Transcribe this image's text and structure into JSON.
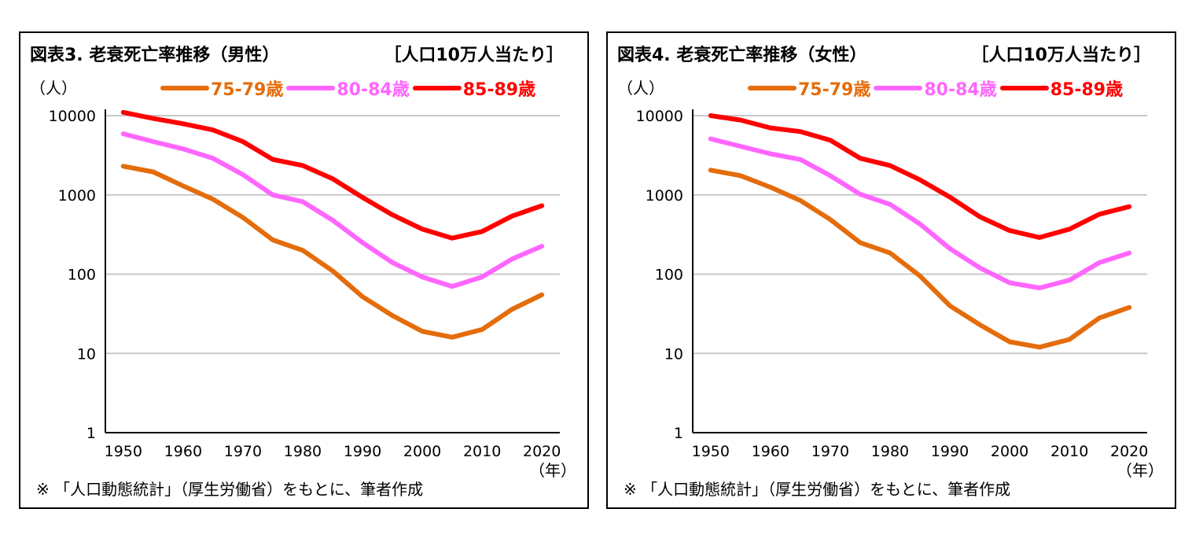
{
  "chart_data": [
    {
      "type": "line",
      "title": "図表3.  老衰死亡率推移（男性）",
      "unit_note": "［人口10万人当たり］",
      "ylabel": "（人）",
      "xlabel": "（年）",
      "source": "※ 「人口動態統計」（厚生労働省）をもとに、筆者作成",
      "yscale": "log",
      "ylim": [
        1,
        10000
      ],
      "yticks": [
        "1",
        "10",
        "100",
        "1000",
        "10000"
      ],
      "xticks": [
        "1950",
        "1960",
        "1970",
        "1980",
        "1990",
        "2000",
        "2010",
        "2020"
      ],
      "x": [
        1950,
        1955,
        1960,
        1965,
        1970,
        1975,
        1980,
        1985,
        1990,
        1995,
        2000,
        2005,
        2010,
        2015,
        2020
      ],
      "legend_position": "top",
      "series": [
        {
          "name": "75-79歳",
          "color": "#E46C0A",
          "values": [
            2300,
            1950,
            1300,
            880,
            520,
            270,
            200,
            110,
            52,
            30,
            19,
            16,
            20,
            36,
            55
          ]
        },
        {
          "name": "80-84歳",
          "color": "#FF66FF",
          "values": [
            5900,
            4700,
            3800,
            2900,
            1800,
            1000,
            820,
            480,
            250,
            140,
            92,
            70,
            92,
            155,
            225
          ]
        },
        {
          "name": "85-89歳",
          "color": "#FF0000",
          "values": [
            11000,
            9200,
            7900,
            6600,
            4700,
            2800,
            2350,
            1600,
            930,
            560,
            370,
            285,
            345,
            540,
            730
          ]
        }
      ]
    },
    {
      "type": "line",
      "title": "図表4.  老衰死亡率推移（女性）",
      "unit_note": "［人口10万人当たり］",
      "ylabel": "（人）",
      "xlabel": "（年）",
      "source": "※ 「人口動態統計」（厚生労働省）をもとに、筆者作成",
      "yscale": "log",
      "ylim": [
        1,
        10000
      ],
      "yticks": [
        "1",
        "10",
        "100",
        "1000",
        "10000"
      ],
      "xticks": [
        "1950",
        "1960",
        "1970",
        "1980",
        "1990",
        "2000",
        "2010",
        "2020"
      ],
      "x": [
        1950,
        1955,
        1960,
        1965,
        1970,
        1975,
        1980,
        1985,
        1990,
        1995,
        2000,
        2005,
        2010,
        2015,
        2020
      ],
      "legend_position": "top",
      "series": [
        {
          "name": "75-79歳",
          "color": "#E46C0A",
          "values": [
            2050,
            1750,
            1250,
            850,
            490,
            250,
            185,
            95,
            40,
            23,
            14,
            12,
            15,
            28,
            38
          ]
        },
        {
          "name": "80-84歳",
          "color": "#FF66FF",
          "values": [
            5100,
            4100,
            3300,
            2800,
            1750,
            1020,
            760,
            430,
            210,
            120,
            78,
            67,
            84,
            140,
            185
          ]
        },
        {
          "name": "85-89歳",
          "color": "#FF0000",
          "values": [
            10000,
            8800,
            7000,
            6300,
            4900,
            2900,
            2350,
            1550,
            940,
            530,
            355,
            290,
            370,
            570,
            710
          ]
        }
      ]
    }
  ]
}
